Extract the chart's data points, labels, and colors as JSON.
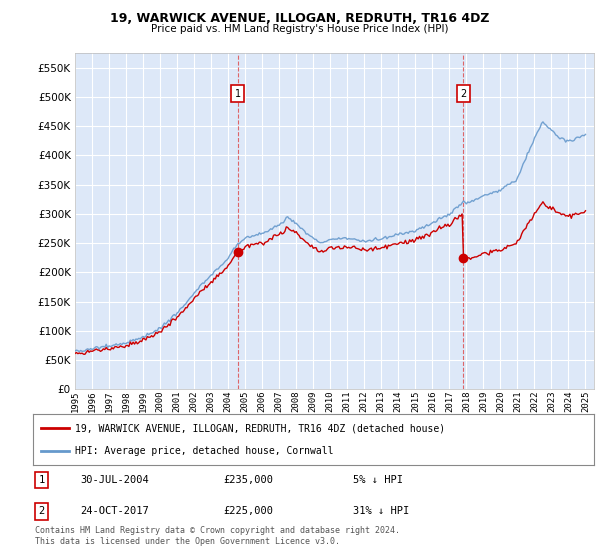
{
  "title": "19, WARWICK AVENUE, ILLOGAN, REDRUTH, TR16 4DZ",
  "subtitle": "Price paid vs. HM Land Registry's House Price Index (HPI)",
  "legend_label_red": "19, WARWICK AVENUE, ILLOGAN, REDRUTH, TR16 4DZ (detached house)",
  "legend_label_blue": "HPI: Average price, detached house, Cornwall",
  "annotation1_label": "1",
  "annotation1_date": "30-JUL-2004",
  "annotation1_price": "£235,000",
  "annotation1_hpi": "5% ↓ HPI",
  "annotation2_label": "2",
  "annotation2_date": "24-OCT-2017",
  "annotation2_price": "£225,000",
  "annotation2_hpi": "31% ↓ HPI",
  "footer": "Contains HM Land Registry data © Crown copyright and database right 2024.\nThis data is licensed under the Open Government Licence v3.0.",
  "ylim": [
    0,
    575000
  ],
  "yticks": [
    0,
    50000,
    100000,
    150000,
    200000,
    250000,
    300000,
    350000,
    400000,
    450000,
    500000,
    550000
  ],
  "ytick_labels": [
    "£0",
    "£50K",
    "£100K",
    "£150K",
    "£200K",
    "£250K",
    "£300K",
    "£350K",
    "£400K",
    "£450K",
    "£500K",
    "£550K"
  ],
  "bg_color": "#dde8f8",
  "grid_color": "#ffffff",
  "red_color": "#cc0000",
  "blue_color": "#6699cc",
  "purchase1_year": 2004.57,
  "purchase1_price": 235000,
  "purchase2_year": 2017.81,
  "purchase2_price": 225000,
  "xmin": 1995,
  "xmax": 2025.5,
  "xticks": [
    1995,
    1996,
    1997,
    1998,
    1999,
    2000,
    2001,
    2002,
    2003,
    2004,
    2005,
    2006,
    2007,
    2008,
    2009,
    2010,
    2011,
    2012,
    2013,
    2014,
    2015,
    2016,
    2017,
    2018,
    2019,
    2020,
    2021,
    2022,
    2023,
    2024,
    2025
  ]
}
